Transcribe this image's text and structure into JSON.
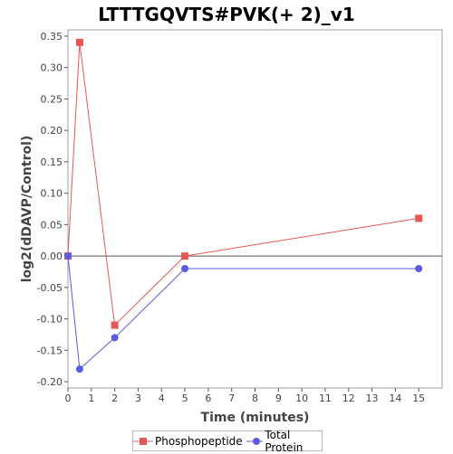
{
  "chart_data": {
    "type": "line",
    "title": "LTTTGQVTS#PVK(+ 2)_v1",
    "xlabel": "Time (minutes)",
    "ylabel": "log2(dDAVP/Control)",
    "xlim": [
      0,
      16
    ],
    "ylim": [
      -0.21,
      0.36
    ],
    "x_ticks": [
      "0",
      "1",
      "2",
      "3",
      "4",
      "5",
      "6",
      "7",
      "8",
      "9",
      "10",
      "11",
      "12",
      "13",
      "14",
      "15"
    ],
    "y_ticks": [
      "0.35",
      "0.30",
      "0.25",
      "0.20",
      "0.15",
      "0.10",
      "0.05",
      "0.00",
      "-0.05",
      "-0.10",
      "-0.15",
      "-0.20"
    ],
    "zero_line": true,
    "grid": false,
    "legend_position": "bottom",
    "series": [
      {
        "name": "Phosphopeptide",
        "color": "#e85757",
        "marker": "square",
        "x": [
          0,
          0.5,
          2,
          5,
          15
        ],
        "y": [
          0.0,
          0.34,
          -0.11,
          0.0,
          0.06
        ]
      },
      {
        "name": "Total Protein",
        "color": "#5a5ae6",
        "marker": "circle",
        "x": [
          0,
          0.5,
          2,
          5,
          15
        ],
        "y": [
          0.0,
          -0.18,
          -0.13,
          -0.02,
          -0.02
        ]
      }
    ]
  }
}
